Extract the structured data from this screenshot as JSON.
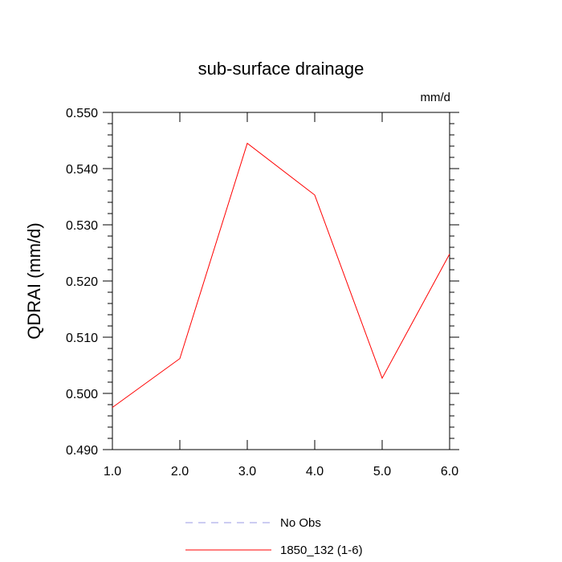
{
  "chart_data": {
    "type": "line",
    "title": "sub-surface drainage",
    "units": "mm/d",
    "xlabel": "",
    "ylabel": "QDRAI  (mm/d)",
    "xlim": [
      1.0,
      6.0
    ],
    "ylim": [
      0.49,
      0.55
    ],
    "x_ticks": [
      "1.0",
      "2.0",
      "3.0",
      "4.0",
      "5.0",
      "6.0"
    ],
    "y_ticks": [
      "0.490",
      "0.500",
      "0.510",
      "0.520",
      "0.530",
      "0.540",
      "0.550"
    ],
    "x": [
      1,
      2,
      3,
      4,
      5,
      6
    ],
    "series": [
      {
        "name": "1850_132 (1-6)",
        "color": "#ff0000",
        "style": "solid",
        "values": [
          0.4975,
          0.5062,
          0.5445,
          0.5353,
          0.5027,
          0.5248
        ]
      }
    ],
    "legend": [
      {
        "label": "No Obs",
        "color": "#9a9ae6",
        "style": "dashed"
      },
      {
        "label": "1850_132 (1-6)",
        "color": "#ff0000",
        "style": "solid"
      }
    ],
    "legend_position": "bottom-center",
    "grid": false
  }
}
